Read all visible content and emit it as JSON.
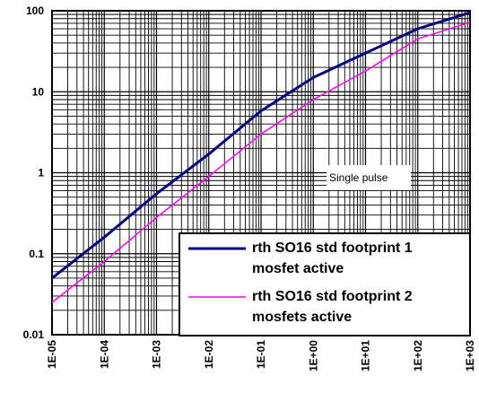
{
  "chart_data": {
    "type": "line",
    "x_scale": "log",
    "y_scale": "log",
    "xlim": [
      1e-05,
      1000
    ],
    "ylim": [
      0.01,
      100
    ],
    "x_tick_labels": [
      "1E-05",
      "1E-04",
      "1E-03",
      "1E-02",
      "1E-01",
      "1E+00",
      "1E+01",
      "1E+02",
      "1E+03"
    ],
    "y_tick_labels": [
      "0.01",
      "0.1",
      "1",
      "10",
      "100"
    ],
    "grid": true,
    "annotation": "Single pulse",
    "legend_position": "bottom-right",
    "series": [
      {
        "name": "rth SO16 std footprint 1 mosfet active",
        "color": "#000080",
        "x": [
          1e-05,
          0.0001,
          0.001,
          0.01,
          0.1,
          1,
          10,
          100,
          1000
        ],
        "y": [
          0.05,
          0.16,
          0.55,
          1.7,
          5.8,
          15,
          30,
          60,
          95
        ]
      },
      {
        "name": "rth SO16 std footprint 2 mosfets active",
        "color": "#ff00ff",
        "x": [
          1e-05,
          0.0001,
          0.001,
          0.01,
          0.1,
          1,
          10,
          100,
          1000
        ],
        "y": [
          0.025,
          0.08,
          0.28,
          0.9,
          3.0,
          8.0,
          18,
          45,
          72
        ]
      }
    ]
  }
}
